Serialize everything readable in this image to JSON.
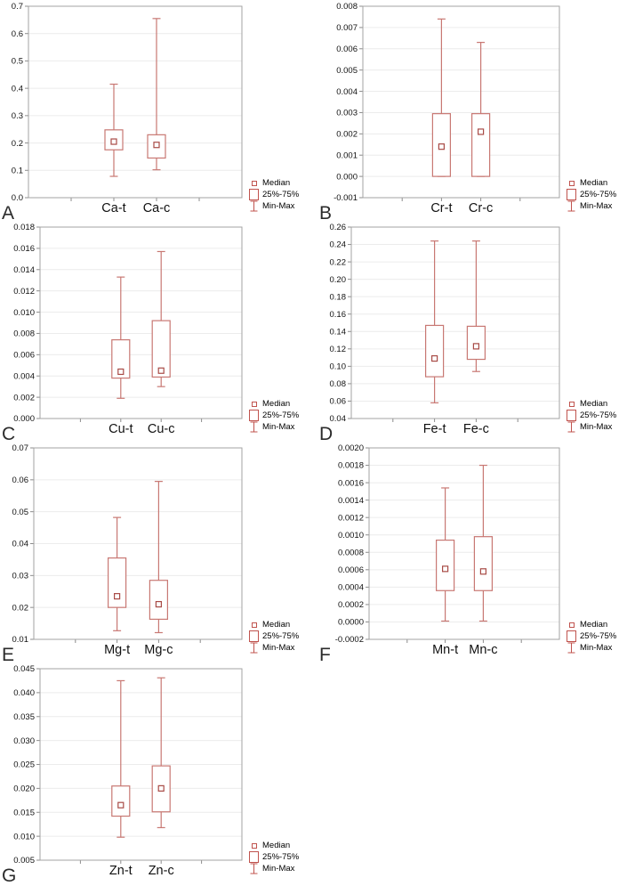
{
  "legend": {
    "median_label": "Median",
    "iqr_label": "25%-75%",
    "minmax_label": "Min-Max"
  },
  "colors": {
    "box_stroke": "#c87873",
    "median_stroke": "#a84b46",
    "legend_accent": "#c0534e",
    "grid": "#ececec",
    "plot_border": "#a3a3a3",
    "tick": "#8c8c8c",
    "tick_text": "#1a1a1a",
    "category_text": "#111111",
    "panel_letter_color": "#2b2b2b"
  },
  "chart_data": [
    {
      "type": "box",
      "panel_label": "A",
      "ylim": [
        0.0,
        0.7
      ],
      "yticks": [
        "0.0",
        "0.1",
        "0.2",
        "0.3",
        "0.4",
        "0.5",
        "0.6",
        "0.7"
      ],
      "categories": [
        "Ca-t",
        "Ca-c"
      ],
      "grid": true,
      "legend_position": "bottom-right-outside",
      "series": [
        {
          "name": "Ca-t",
          "min": 0.078,
          "q1": 0.175,
          "median": 0.205,
          "q3": 0.248,
          "max": 0.415
        },
        {
          "name": "Ca-c",
          "min": 0.102,
          "q1": 0.145,
          "median": 0.193,
          "q3": 0.23,
          "max": 0.655
        }
      ]
    },
    {
      "type": "box",
      "panel_label": "B",
      "ylim": [
        -0.001,
        0.008
      ],
      "yticks": [
        "-0.001",
        "0.000",
        "0.001",
        "0.002",
        "0.003",
        "0.004",
        "0.005",
        "0.006",
        "0.007",
        "0.008"
      ],
      "categories": [
        "Cr-t",
        "Cr-c"
      ],
      "grid": true,
      "legend_position": "bottom-right-outside",
      "series": [
        {
          "name": "Cr-t",
          "min": 0.0,
          "q1": 0.0,
          "median": 0.0014,
          "q3": 0.00295,
          "max": 0.0074
        },
        {
          "name": "Cr-c",
          "min": 0.0,
          "q1": 0.0,
          "median": 0.0021,
          "q3": 0.00295,
          "max": 0.0063
        }
      ]
    },
    {
      "type": "box",
      "panel_label": "C",
      "ylim": [
        0.0,
        0.018
      ],
      "yticks": [
        "0.000",
        "0.002",
        "0.004",
        "0.006",
        "0.008",
        "0.010",
        "0.012",
        "0.014",
        "0.016",
        "0.018"
      ],
      "categories": [
        "Cu-t",
        "Cu-c"
      ],
      "grid": true,
      "legend_position": "bottom-right-outside",
      "series": [
        {
          "name": "Cu-t",
          "min": 0.0019,
          "q1": 0.0038,
          "median": 0.0044,
          "q3": 0.0074,
          "max": 0.0133
        },
        {
          "name": "Cu-c",
          "min": 0.003,
          "q1": 0.0039,
          "median": 0.0045,
          "q3": 0.0092,
          "max": 0.0157
        }
      ]
    },
    {
      "type": "box",
      "panel_label": "D",
      "ylim": [
        0.04,
        0.26
      ],
      "yticks": [
        "0.04",
        "0.06",
        "0.08",
        "0.10",
        "0.12",
        "0.14",
        "0.16",
        "0.18",
        "0.20",
        "0.22",
        "0.24",
        "0.26"
      ],
      "categories": [
        "Fe-t",
        "Fe-c"
      ],
      "grid": true,
      "legend_position": "bottom-right-outside",
      "series": [
        {
          "name": "Fe-t",
          "min": 0.058,
          "q1": 0.088,
          "median": 0.109,
          "q3": 0.147,
          "max": 0.244
        },
        {
          "name": "Fe-c",
          "min": 0.094,
          "q1": 0.108,
          "median": 0.123,
          "q3": 0.146,
          "max": 0.244
        }
      ]
    },
    {
      "type": "box",
      "panel_label": "E",
      "ylim": [
        0.01,
        0.07
      ],
      "yticks": [
        "0.01",
        "0.02",
        "0.03",
        "0.04",
        "0.05",
        "0.06",
        "0.07"
      ],
      "categories": [
        "Mg-t",
        "Mg-c"
      ],
      "grid": true,
      "legend_position": "bottom-right-outside",
      "series": [
        {
          "name": "Mg-t",
          "min": 0.0127,
          "q1": 0.02,
          "median": 0.0235,
          "q3": 0.0355,
          "max": 0.0482
        },
        {
          "name": "Mg-c",
          "min": 0.0121,
          "q1": 0.0163,
          "median": 0.021,
          "q3": 0.0285,
          "max": 0.0595
        }
      ]
    },
    {
      "type": "box",
      "panel_label": "F",
      "ylim": [
        -0.0002,
        0.002
      ],
      "yticks": [
        "-0.0002",
        "0.0000",
        "0.0002",
        "0.0004",
        "0.0006",
        "0.0008",
        "0.0010",
        "0.0012",
        "0.0014",
        "0.0016",
        "0.0018",
        "0.0020"
      ],
      "categories": [
        "Mn-t",
        "Mn-c"
      ],
      "grid": true,
      "legend_position": "bottom-right-outside",
      "series": [
        {
          "name": "Mn-t",
          "min": 1e-05,
          "q1": 0.00036,
          "median": 0.00061,
          "q3": 0.00094,
          "max": 0.00154
        },
        {
          "name": "Mn-c",
          "min": 1e-05,
          "q1": 0.00036,
          "median": 0.00058,
          "q3": 0.00098,
          "max": 0.0018
        }
      ]
    },
    {
      "type": "box",
      "panel_label": "G",
      "ylim": [
        0.005,
        0.045
      ],
      "yticks": [
        "0.005",
        "0.010",
        "0.015",
        "0.020",
        "0.025",
        "0.030",
        "0.035",
        "0.040",
        "0.045"
      ],
      "categories": [
        "Zn-t",
        "Zn-c"
      ],
      "grid": true,
      "legend_position": "bottom-right-outside",
      "series": [
        {
          "name": "Zn-t",
          "min": 0.0098,
          "q1": 0.0142,
          "median": 0.0165,
          "q3": 0.0205,
          "max": 0.0425
        },
        {
          "name": "Zn-c",
          "min": 0.0118,
          "q1": 0.0151,
          "median": 0.02,
          "q3": 0.0247,
          "max": 0.0431
        }
      ]
    }
  ]
}
